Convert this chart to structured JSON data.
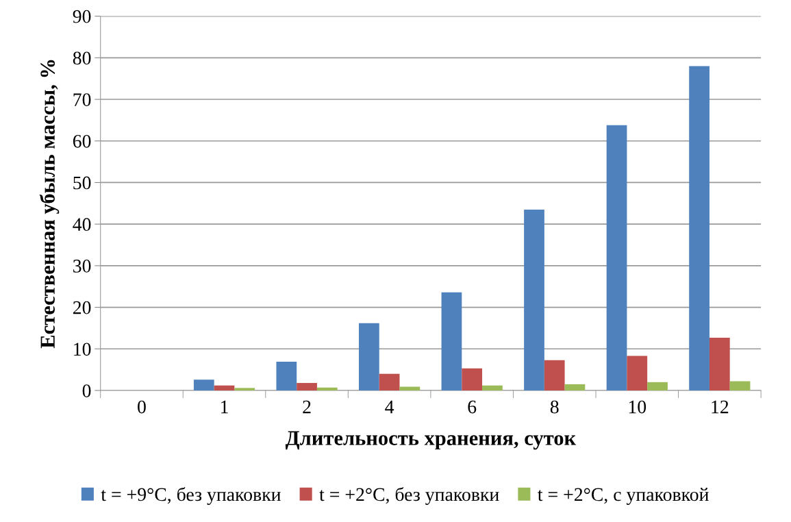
{
  "chart_data": {
    "type": "bar",
    "xlabel": "Длительность хранения, суток",
    "ylabel": "Естественная убыль массы, %",
    "categories": [
      "0",
      "1",
      "2",
      "4",
      "6",
      "8",
      "10",
      "12"
    ],
    "series": [
      {
        "name": "t = +9°C, без упаковки",
        "color": "#4f81bd",
        "values": [
          0,
          2.6,
          6.9,
          16.2,
          23.6,
          43.5,
          63.8,
          78.0
        ]
      },
      {
        "name": "t = +2°C, без упаковки",
        "color": "#c0504d",
        "values": [
          0,
          1.2,
          1.8,
          4.0,
          5.3,
          7.3,
          8.3,
          12.7
        ]
      },
      {
        "name": "t = +2°C, с упаковкой",
        "color": "#9bbb59",
        "values": [
          0,
          0.6,
          0.7,
          0.9,
          1.2,
          1.5,
          2.0,
          2.2
        ]
      }
    ],
    "ylim": [
      0,
      90
    ],
    "yticks": [
      0,
      10,
      20,
      30,
      40,
      50,
      60,
      70,
      80,
      90
    ],
    "grid": "y",
    "legend": "bottom"
  }
}
